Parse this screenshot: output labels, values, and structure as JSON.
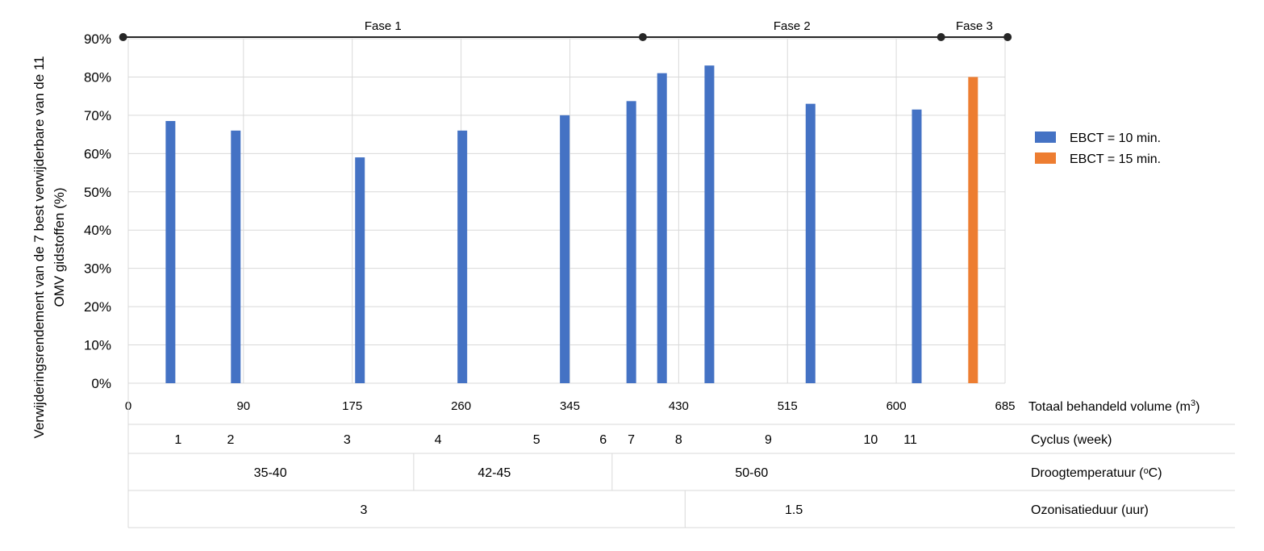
{
  "chart_data": {
    "type": "bar",
    "ylabel_lines": [
      "Verwijderingsrendement van de 7 best verwijderbare van de 11",
      "OMV gidstoffen (%)"
    ],
    "xlabel": "Totaal behandeld volume (m³)",
    "xlim": [
      0,
      685
    ],
    "ylim": [
      0,
      0.9
    ],
    "x_ticks": [
      0,
      90,
      175,
      260,
      345,
      430,
      515,
      600,
      685
    ],
    "y_ticks": [
      "0%",
      "10%",
      "20%",
      "30%",
      "40%",
      "50%",
      "60%",
      "70%",
      "80%",
      "90%"
    ],
    "series": [
      {
        "name": "EBCT = 10 min.",
        "color": "#4472c4",
        "x": [
          33,
          84,
          181,
          261,
          341,
          393,
          417,
          454,
          533,
          616
        ],
        "values": [
          0.685,
          0.66,
          0.59,
          0.66,
          0.7,
          0.737,
          0.81,
          0.83,
          0.73,
          0.715
        ]
      },
      {
        "name": "EBCT = 15 min.",
        "color": "#ed7d31",
        "x": [
          660
        ],
        "values": [
          0.8
        ]
      }
    ],
    "phases": {
      "labels": [
        "Fase 1",
        "Fase 2",
        "Fase 3"
      ],
      "boundaries": [
        -4,
        402,
        635,
        687
      ]
    },
    "legend_position": "right",
    "grid": true
  },
  "table": {
    "rows": [
      {
        "label": "Cyclus (week)",
        "cells": [
          {
            "text": "1",
            "x": 39
          },
          {
            "text": "2",
            "x": 80
          },
          {
            "text": "3",
            "x": 171
          },
          {
            "text": "4",
            "x": 242
          },
          {
            "text": "5",
            "x": 319
          },
          {
            "text": "6",
            "x": 371
          },
          {
            "text": "7",
            "x": 393
          },
          {
            "text": "8",
            "x": 430
          },
          {
            "text": "9",
            "x": 500
          },
          {
            "text": "10",
            "x": 580
          },
          {
            "text": "11",
            "x": 611
          }
        ]
      },
      {
        "label": "Droogtemperatuur (ᵒC)",
        "dividers": [
          223,
          378
        ],
        "cells": [
          {
            "text": "35-40",
            "x": 111
          },
          {
            "text": "42-45",
            "x": 286
          },
          {
            "text": "50-60",
            "x": 487
          }
        ]
      },
      {
        "label": "Ozonisatieduur (uur)",
        "dividers": [
          435
        ],
        "cells": [
          {
            "text": "3",
            "x": 184
          },
          {
            "text": "1.5",
            "x": 520
          }
        ]
      }
    ]
  }
}
